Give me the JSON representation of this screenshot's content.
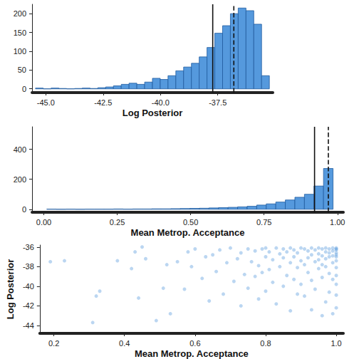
{
  "chart_data": [
    {
      "type": "histogram",
      "x_label": "Log Posterior",
      "color": "#5599dd",
      "grid": false,
      "bins": [
        -45.45,
        -45.11,
        -44.77,
        -44.43,
        -44.09,
        -43.75,
        -43.41,
        -43.07,
        -42.73,
        -42.39,
        -42.05,
        -41.71,
        -41.37,
        -41.03,
        -40.69,
        -40.35,
        -40.01,
        -39.67,
        -39.33,
        -38.99,
        -38.65,
        -38.31,
        -37.97,
        -37.63,
        -37.29,
        -36.95,
        -36.61,
        -36.27,
        -35.93,
        -35.59,
        -35.25
      ],
      "counts": [
        2,
        0,
        2,
        1,
        0,
        1,
        2,
        1,
        3,
        5,
        8,
        12,
        15,
        12,
        18,
        28,
        25,
        35,
        48,
        58,
        68,
        85,
        110,
        148,
        168,
        200,
        215,
        208,
        172,
        35
      ],
      "xlim": [
        -45.6,
        -35.1
      ],
      "xticks": [
        {
          "value": -45,
          "label": "-45.0"
        },
        -42.5,
        {
          "value": -40,
          "label": "-40.0"
        },
        -37.5
      ],
      "ylim": [
        -10,
        225
      ],
      "yticks": [
        0,
        50,
        100,
        150,
        200
      ],
      "vlines": [
        {
          "value": -37.72,
          "line_style": "solid"
        },
        {
          "value": -36.8,
          "line_style": "dashed"
        }
      ]
    },
    {
      "type": "histogram",
      "x_label": "Mean Metrop. Acceptance",
      "color": "#5599dd",
      "grid": false,
      "bins": [
        0.01,
        0.0425,
        0.075,
        0.1075,
        0.14,
        0.1725,
        0.205,
        0.2375,
        0.27,
        0.3025,
        0.335,
        0.3675,
        0.4,
        0.4325,
        0.465,
        0.4975,
        0.53,
        0.5625,
        0.595,
        0.6275,
        0.66,
        0.6925,
        0.725,
        0.7575,
        0.79,
        0.8225,
        0.855,
        0.8875,
        0.92,
        0.9525,
        0.985
      ],
      "counts": [
        1,
        0,
        1,
        0,
        1,
        1,
        1,
        2,
        1,
        2,
        2,
        3,
        3,
        4,
        5,
        6,
        7,
        9,
        11,
        13,
        16,
        20,
        28,
        36,
        48,
        62,
        80,
        100,
        155,
        272
      ],
      "xlim": [
        -0.04,
        1.02
      ],
      "xticks": [
        {
          "value": 0,
          "label": "0.00"
        },
        0.25,
        {
          "value": 0.5,
          "label": "0.50"
        },
        0.75,
        {
          "value": 1,
          "label": "1.00"
        }
      ],
      "ylim": [
        -20,
        550
      ],
      "yticks": [
        0,
        200,
        400
      ],
      "vlines": [
        {
          "value": 0.922,
          "line_style": "solid"
        },
        {
          "value": 0.969,
          "line_style": "dashed"
        }
      ]
    },
    {
      "type": "scatter",
      "x_label": "Mean Metrop. Acceptance",
      "y_label": "Log Posterior",
      "color": "#5599dd",
      "grid": false,
      "x": [
        0.19,
        0.23,
        0.31,
        0.32,
        0.33,
        0.38,
        0.42,
        0.43,
        0.44,
        0.45,
        0.46,
        0.49,
        0.51,
        0.52,
        0.53,
        0.55,
        0.57,
        0.58,
        0.59,
        0.6,
        0.62,
        0.63,
        0.64,
        0.65,
        0.66,
        0.67,
        0.68,
        0.69,
        0.7,
        0.71,
        0.72,
        0.73,
        0.73,
        0.74,
        0.75,
        0.75,
        0.76,
        0.77,
        0.77,
        0.78,
        0.78,
        0.79,
        0.79,
        0.8,
        0.8,
        0.8,
        0.81,
        0.81,
        0.82,
        0.82,
        0.83,
        0.83,
        0.84,
        0.84,
        0.85,
        0.85,
        0.85,
        0.86,
        0.86,
        0.87,
        0.87,
        0.87,
        0.88,
        0.88,
        0.88,
        0.89,
        0.89,
        0.89,
        0.9,
        0.9,
        0.9,
        0.91,
        0.91,
        0.91,
        0.92,
        0.92,
        0.92,
        0.93,
        0.93,
        0.93,
        0.94,
        0.94,
        0.94,
        0.95,
        0.95,
        0.95,
        0.95,
        0.96,
        0.96,
        0.96,
        0.96,
        0.97,
        0.97,
        0.97,
        0.97,
        0.97,
        0.98,
        0.98,
        0.98,
        0.98,
        0.98,
        0.99,
        0.99,
        0.99,
        0.99,
        0.99,
        1.0,
        1.0,
        1.0,
        1.0,
        1.0,
        1.0,
        1.0,
        1.0,
        1.0,
        1.0,
        1.0,
        1.0,
        0.99,
        0.96,
        0.93
      ],
      "y": [
        -37.5,
        -37.4,
        -43.7,
        -41.0,
        -40.5,
        -37.4,
        -38.2,
        -36.5,
        -41.2,
        -36.0,
        -37.2,
        -43.5,
        -40.2,
        -37.8,
        -42.8,
        -37.5,
        -40.3,
        -36.5,
        -38.0,
        -36.2,
        -39.2,
        -37.0,
        -41.5,
        -36.8,
        -38.5,
        -36.3,
        -40.8,
        -37.6,
        -36.1,
        -39.5,
        -37.2,
        -42.0,
        -36.6,
        -38.8,
        -36.2,
        -40.2,
        -37.5,
        -39.0,
        -36.4,
        -41.3,
        -37.9,
        -36.2,
        -38.6,
        -40.5,
        -37.0,
        -36.1,
        -38.3,
        -36.5,
        -39.6,
        -37.3,
        -36.1,
        -41.8,
        -38.0,
        -36.7,
        -40.0,
        -37.1,
        -36.2,
        -38.9,
        -36.5,
        -42.5,
        -37.6,
        -36.1,
        -39.3,
        -37.0,
        -36.3,
        -40.8,
        -38.1,
        -36.6,
        -37.4,
        -36.1,
        -39.8,
        -36.2,
        -37.8,
        -41.0,
        -36.4,
        -38.6,
        -37.1,
        -36.1,
        -39.4,
        -36.8,
        -37.5,
        -36.3,
        -40.3,
        -36.1,
        -38.2,
        -36.7,
        -37.3,
        -36.2,
        -39.1,
        -36.9,
        -37.8,
        -36.1,
        -36.5,
        -38.0,
        -41.6,
        -37.2,
        -36.2,
        -36.6,
        -37.0,
        -38.7,
        -40.6,
        -36.1,
        -36.4,
        -36.9,
        -37.6,
        -39.3,
        -36.1,
        -36.3,
        -36.6,
        -37.0,
        -37.4,
        -38.1,
        -38.9,
        -39.8,
        -40.9,
        -42.2,
        -36.2,
        -36.8,
        -42.8,
        -43.0,
        -42.4
      ],
      "xlim": [
        0.16,
        1.02
      ],
      "xticks": [
        0.2,
        0.4,
        0.6,
        0.8,
        {
          "value": 1,
          "label": "1.0"
        }
      ],
      "ylim": [
        -44.8,
        -35.8
      ],
      "yticks": [
        -44,
        -42,
        -40,
        -38,
        -36
      ]
    }
  ]
}
